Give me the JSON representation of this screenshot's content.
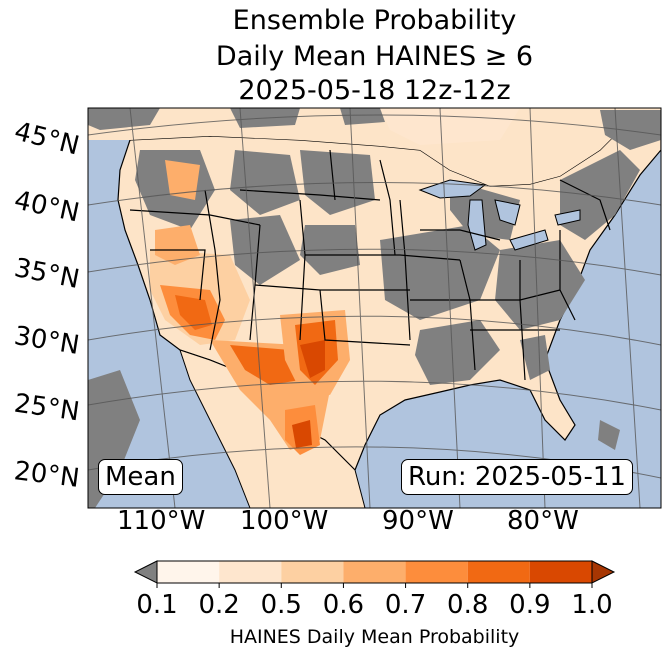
{
  "title": {
    "line1": "Ensemble Probability",
    "line2": "Daily Mean HAINES ≥ 6",
    "line3": "2025-05-18 12z-12z"
  },
  "map": {
    "lat_labels": [
      "45°N",
      "40°N",
      "35°N",
      "30°N",
      "25°N",
      "20°N"
    ],
    "lon_labels": [
      "110°W",
      "100°W",
      "90°W",
      "80°W"
    ],
    "ocean_color": "#b0c4de",
    "land_missing_color": "#808080",
    "boundary_color": "#000000",
    "grid_color": "#555555"
  },
  "boxes": {
    "mean": "Mean",
    "run": "Run: 2025-05-11"
  },
  "colorbar": {
    "ticks": [
      "0.1",
      "0.2",
      "0.5",
      "0.6",
      "0.7",
      "0.8",
      "0.9",
      "1.0"
    ],
    "colors": [
      "#fff5eb",
      "#fee6ce",
      "#fdd0a2",
      "#fdae6b",
      "#fd8d3c",
      "#f16913",
      "#d94801",
      "#a63603"
    ],
    "under_color": "#808080",
    "label": "HAINES Daily Mean Probability"
  }
}
